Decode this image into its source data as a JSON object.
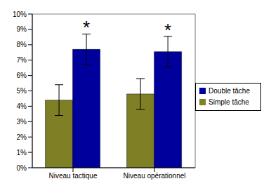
{
  "chart_data": {
    "type": "bar",
    "categories": [
      "Niveau tactique",
      "Niveau opérationnel"
    ],
    "series": [
      {
        "name": "Simple tâche",
        "color": "#7f7f26",
        "values": [
          4.4,
          4.8
        ],
        "errors": [
          1.0,
          1.0
        ]
      },
      {
        "name": "Double tâche",
        "color": "#00009c",
        "values": [
          7.7,
          7.55
        ],
        "errors": [
          1.0,
          1.0
        ]
      }
    ],
    "ylim": [
      0,
      10
    ],
    "yticks": [
      {
        "value": 0,
        "label": "0%"
      },
      {
        "value": 1,
        "label": "1%"
      },
      {
        "value": 2,
        "label": "2%"
      },
      {
        "value": 3,
        "label": "3%"
      },
      {
        "value": 4,
        "label": "4%"
      },
      {
        "value": 5,
        "label": "5%"
      },
      {
        "value": 6,
        "label": "6%"
      },
      {
        "value": 7,
        "label": "7%"
      },
      {
        "value": 8,
        "label": "8%"
      },
      {
        "value": 9,
        "label": "9%"
      },
      {
        "value": 10,
        "label": "10%"
      }
    ],
    "grid": false,
    "legend": "right",
    "annotations": [
      {
        "text": "*",
        "category": "Niveau tactique",
        "series": "Double tâche"
      },
      {
        "text": "*",
        "category": "Niveau opérationnel",
        "series": "Double tâche"
      }
    ]
  }
}
